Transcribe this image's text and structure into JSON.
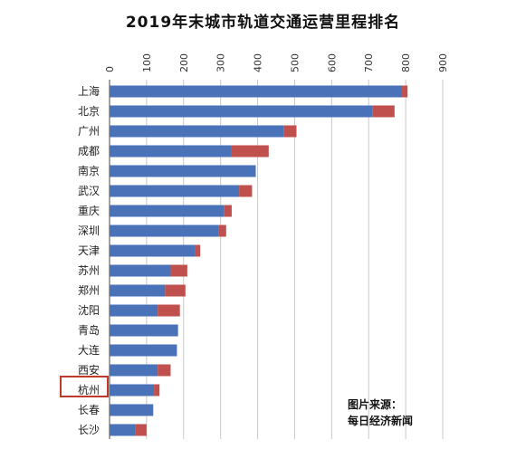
{
  "chart_data": {
    "type": "bar",
    "orientation": "horizontal",
    "stacked": true,
    "title": "2019年末城市轨道交通运营里程排名",
    "categories": [
      "上海",
      "北京",
      "广州",
      "成都",
      "南京",
      "武汉",
      "重庆",
      "深圳",
      "天津",
      "苏州",
      "郑州",
      "沈阳",
      "青岛",
      "大连",
      "西安",
      "杭州",
      "长春",
      "长沙"
    ],
    "series": [
      {
        "color": "#4a72b8",
        "values": [
          790,
          710,
          470,
          330,
          395,
          350,
          310,
          295,
          230,
          165,
          150,
          130,
          185,
          182,
          130,
          120,
          118,
          70
        ]
      },
      {
        "color": "#c0504d",
        "values": [
          15,
          60,
          35,
          100,
          0,
          35,
          20,
          20,
          15,
          45,
          55,
          60,
          0,
          0,
          35,
          15,
          0,
          30
        ]
      }
    ],
    "x_ticks": [
      "0",
      "100",
      "200",
      "300",
      "400",
      "500",
      "600",
      "700",
      "800",
      "900"
    ],
    "xlim": [
      0,
      900
    ],
    "grid": true,
    "axis_position": "top",
    "highlighted_category": "杭州"
  },
  "source_note": {
    "line1": "图片来源：",
    "line2": "每日经济新闻"
  }
}
